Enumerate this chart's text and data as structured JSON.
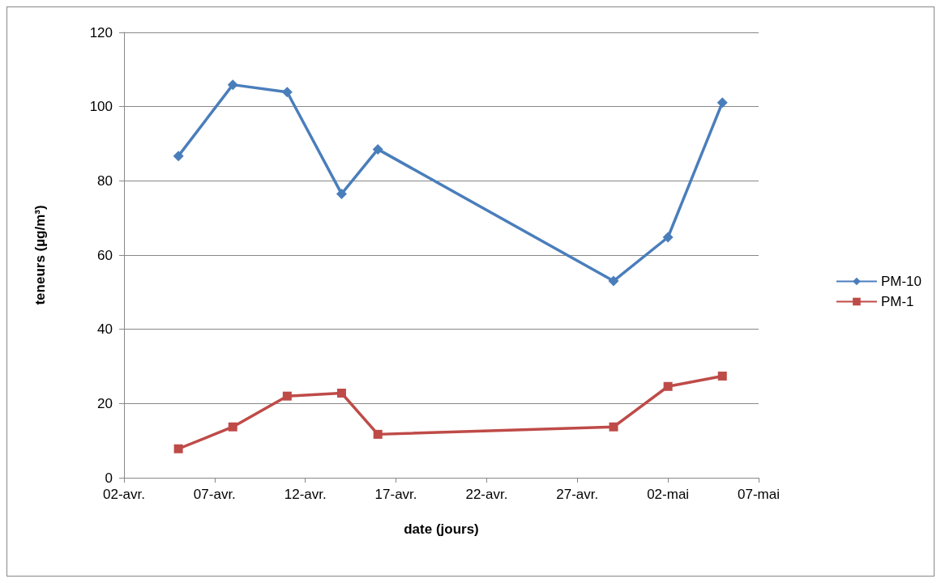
{
  "chart_data": {
    "type": "line",
    "xlabel": "date (jours)",
    "ylabel": "teneurs (µg/m³)",
    "x": [
      "--04-05",
      "--04-08",
      "--04-11",
      "--04-14",
      "--04-16",
      "--04-29",
      "--05-02",
      "--05-05"
    ],
    "series": [
      {
        "name": "PM-10",
        "color": "#4a7ebb",
        "marker": "diamond",
        "values": [
          86.7,
          105.9,
          103.9,
          76.5,
          88.5,
          53,
          64.8,
          101.1
        ]
      },
      {
        "name": "PM-1",
        "color": "#be4b48",
        "marker": "square",
        "values": [
          7.8,
          13.7,
          22,
          22.8,
          11.7,
          13.7,
          24.6,
          27.4
        ]
      }
    ],
    "xlim": [
      "--04-02",
      "--05-07"
    ],
    "xticks": [
      {
        "value": "--04-02",
        "label": "02-avr."
      },
      {
        "value": "--04-07",
        "label": "07-avr."
      },
      {
        "value": "--04-12",
        "label": "12-avr."
      },
      {
        "value": "--04-17",
        "label": "17-avr."
      },
      {
        "value": "--04-22",
        "label": "22-avr."
      },
      {
        "value": "--04-27",
        "label": "27-avr."
      },
      {
        "value": "--05-02",
        "label": "02-mai"
      },
      {
        "value": "--05-07",
        "label": "07-mai"
      }
    ],
    "ylim": [
      0,
      120
    ],
    "yticks": [
      0,
      20,
      40,
      60,
      80,
      100,
      120
    ],
    "grid": "y",
    "legend": "right",
    "line_style": "solid"
  }
}
